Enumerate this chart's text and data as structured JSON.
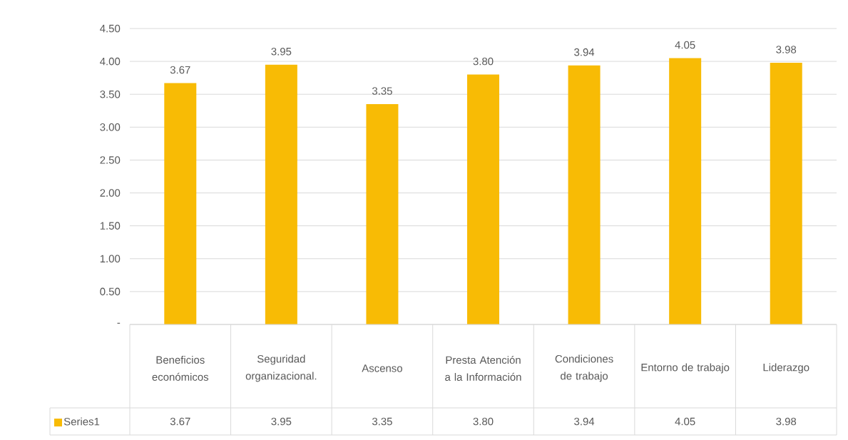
{
  "chart_data": {
    "type": "bar",
    "categories": [
      "Beneficios económicos",
      "Seguridad organizacional.",
      "Ascenso",
      "Presta Atención a la Información",
      "Condiciones de trabajo",
      "Entorno de trabajo",
      "Liderazgo"
    ],
    "series": [
      {
        "name": "Series1",
        "color": "#f8bb05",
        "values": [
          3.67,
          3.95,
          3.35,
          3.8,
          3.94,
          4.05,
          3.98
        ],
        "value_labels": [
          "3.67",
          "3.95",
          "3.35",
          "3.80",
          "3.94",
          "4.05",
          "3.98"
        ]
      }
    ],
    "ylim": [
      0,
      4.5
    ],
    "yticks": [
      {
        "value": 0,
        "label": "-"
      },
      {
        "value": 0.5,
        "label": "0.50"
      },
      {
        "value": 1,
        "label": "1.00"
      },
      {
        "value": 1.5,
        "label": "1.50"
      },
      {
        "value": 2,
        "label": "2.00"
      },
      {
        "value": 2.5,
        "label": "2.50"
      },
      {
        "value": 3,
        "label": "3.00"
      },
      {
        "value": 3.5,
        "label": "3.50"
      },
      {
        "value": 4,
        "label": "4.00"
      },
      {
        "value": 4.5,
        "label": "4.50"
      }
    ],
    "grid": "y",
    "legend": "bottom"
  }
}
